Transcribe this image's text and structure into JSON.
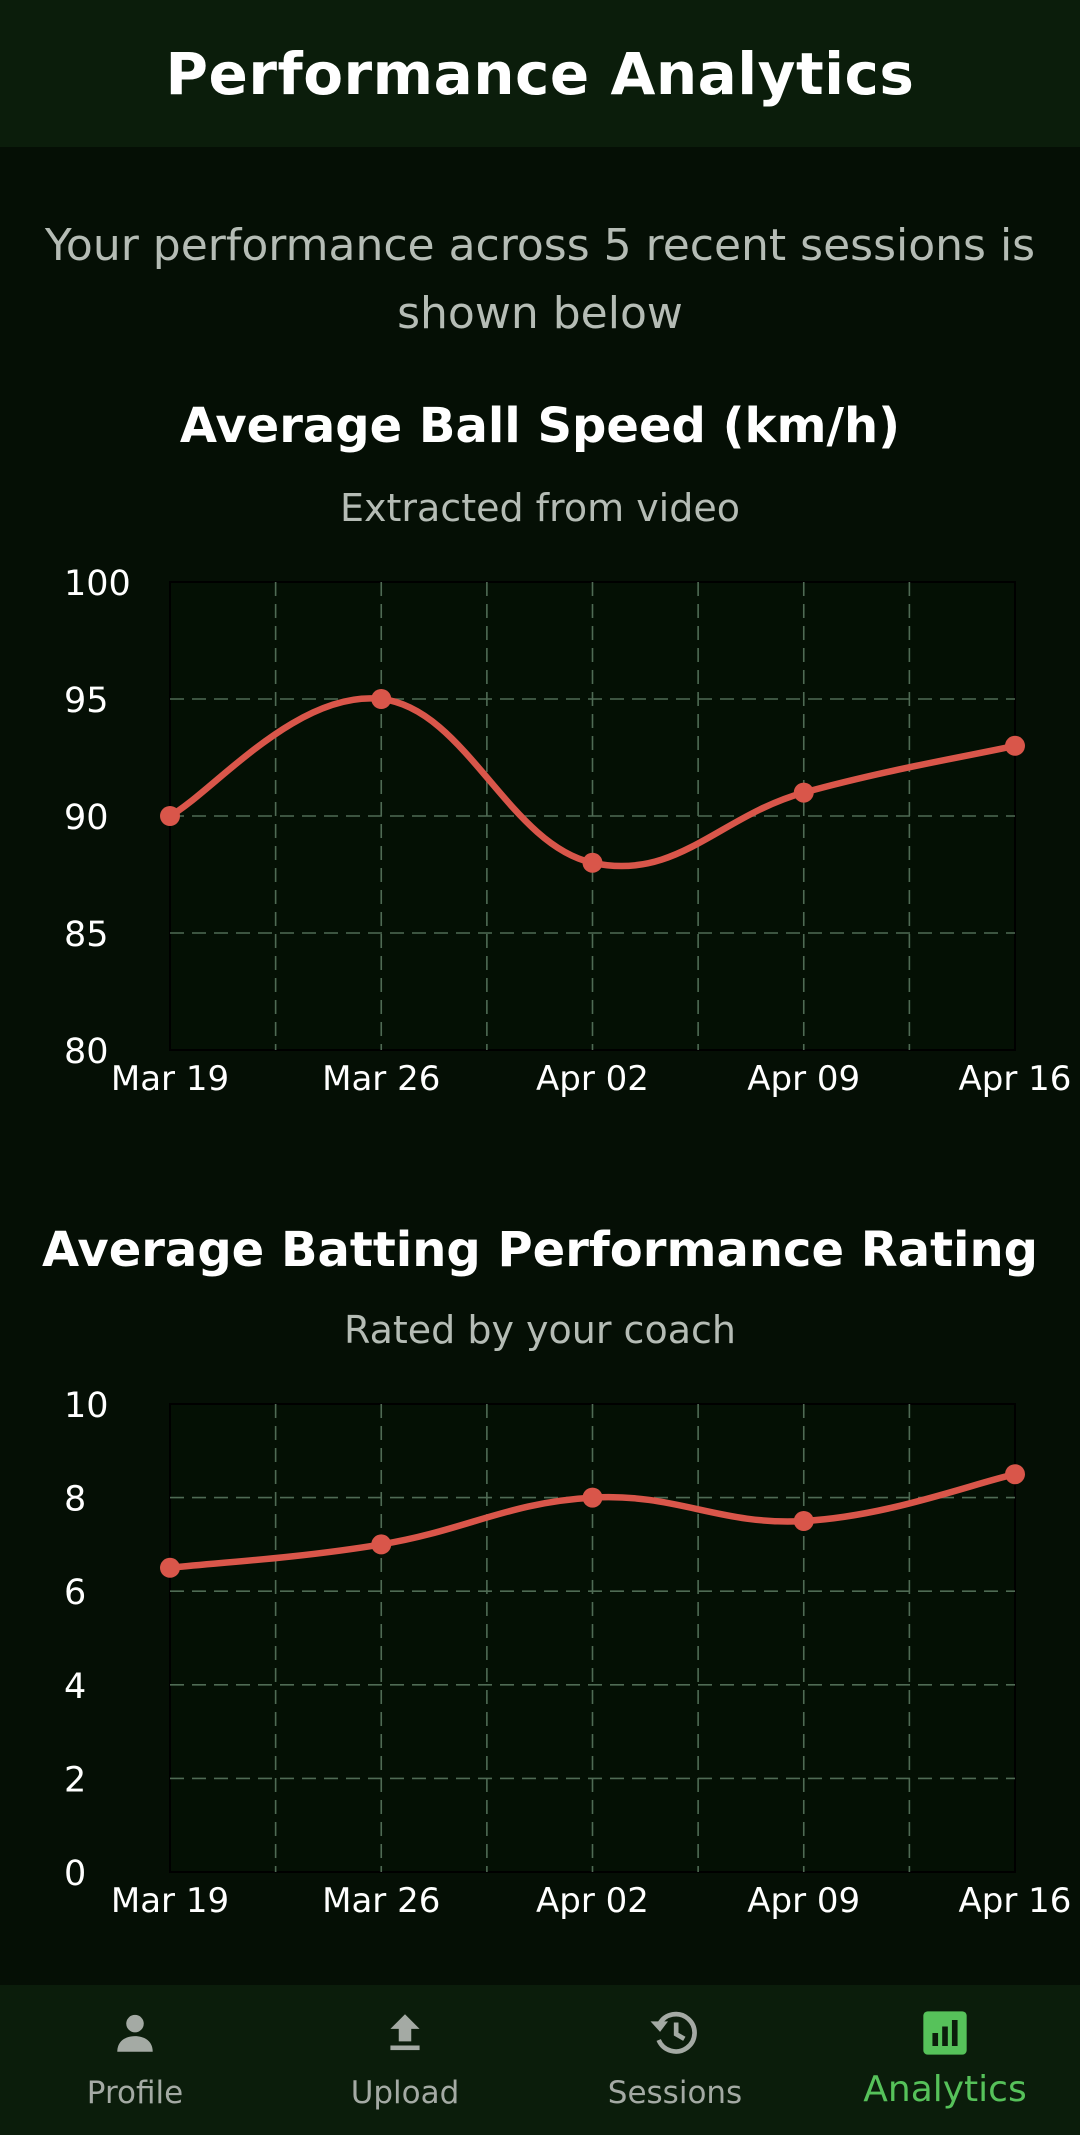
{
  "header": {
    "title": "Performance Analytics"
  },
  "intro": "Your performance across 5 recent sessions is shown below",
  "colors": {
    "line": "#d9564a",
    "grid": "#4f6b54",
    "plot_bg": "#041004",
    "accent": "#56c25a",
    "nav_inactive": "#a4aaa4"
  },
  "charts": [
    {
      "title": "Average Ball Speed (km/h)",
      "subtitle": "Extracted from video"
    },
    {
      "title": "Average Batting Performance Rating",
      "subtitle": "Rated by your coach"
    }
  ],
  "chart_data": [
    {
      "type": "line",
      "title": "Average Ball Speed (km/h)",
      "subtitle": "Extracted from video",
      "x": [
        "Mar 19",
        "Mar 26",
        "Apr 02",
        "Apr 09",
        "Apr 16"
      ],
      "series": [
        {
          "values": [
            90,
            95,
            88,
            91,
            93
          ]
        }
      ],
      "ylim": [
        80,
        100
      ],
      "yticks": [
        80,
        85,
        90,
        95,
        100
      ],
      "grid": true
    },
    {
      "type": "line",
      "title": "Average Batting Performance Rating",
      "subtitle": "Rated by your coach",
      "x": [
        "Mar 19",
        "Mar 26",
        "Apr 02",
        "Apr 09",
        "Apr 16"
      ],
      "series": [
        {
          "values": [
            6.5,
            7,
            8,
            7.5,
            8.5
          ]
        }
      ],
      "ylim": [
        0,
        10
      ],
      "yticks": [
        0,
        2,
        4,
        6,
        8,
        10
      ],
      "grid": true
    }
  ],
  "nav": {
    "items": [
      {
        "label": "Profile",
        "icon": "person-icon",
        "active": false
      },
      {
        "label": "Upload",
        "icon": "upload-icon",
        "active": false
      },
      {
        "label": "Sessions",
        "icon": "history-icon",
        "active": false
      },
      {
        "label": "Analytics",
        "icon": "analytics-icon",
        "active": true
      }
    ]
  }
}
